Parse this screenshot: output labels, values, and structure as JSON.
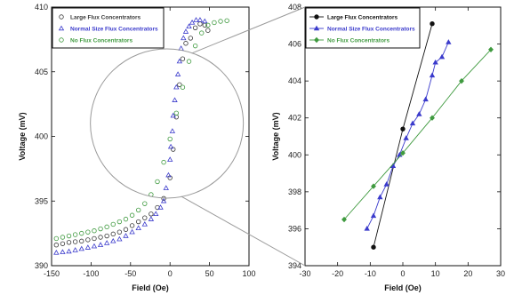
{
  "chart_data": [
    {
      "type": "scatter",
      "xlabel": "Field (Oe)",
      "ylabel": "Voltage (mV)",
      "xlim": [
        -150,
        100
      ],
      "ylim": [
        390,
        410
      ],
      "x_ticks": [
        "-150",
        "-100",
        "-50",
        "0",
        "50",
        "100"
      ],
      "y_ticks": [
        "390",
        "395",
        "400",
        "405",
        "410"
      ],
      "legend_position": "top-left",
      "series": [
        {
          "name": "Large Flux Concentrators",
          "marker": "circle",
          "color": "#3a3a3a",
          "points": [
            [
              -144,
              391.6
            ],
            [
              -136,
              391.7
            ],
            [
              -128,
              391.8
            ],
            [
              -120,
              391.85
            ],
            [
              -112,
              391.9
            ],
            [
              -104,
              392.0
            ],
            [
              -96,
              392.1
            ],
            [
              -88,
              392.2
            ],
            [
              -80,
              392.3
            ],
            [
              -72,
              392.45
            ],
            [
              -64,
              392.6
            ],
            [
              -56,
              392.8
            ],
            [
              -48,
              393.1
            ],
            [
              -40,
              393.4
            ],
            [
              -32,
              393.7
            ],
            [
              -24,
              394.0
            ],
            [
              -16,
              394.5
            ],
            [
              -8,
              395.2
            ],
            [
              0,
              396.8
            ],
            [
              4,
              399.0
            ],
            [
              8,
              401.5
            ],
            [
              12,
              404.0
            ],
            [
              16,
              406.0
            ],
            [
              20,
              407.2
            ],
            [
              26,
              407.6
            ],
            [
              32,
              408.4
            ],
            [
              38,
              408.7
            ],
            [
              44,
              408.6
            ],
            [
              48,
              408.2
            ]
          ]
        },
        {
          "name": "Normal Size Flux Concentrators",
          "marker": "triangle",
          "color": "#3b3bcc",
          "points": [
            [
              -144,
              391.0
            ],
            [
              -136,
              391.05
            ],
            [
              -128,
              391.1
            ],
            [
              -120,
              391.2
            ],
            [
              -112,
              391.3
            ],
            [
              -104,
              391.4
            ],
            [
              -96,
              391.5
            ],
            [
              -88,
              391.6
            ],
            [
              -80,
              391.75
            ],
            [
              -72,
              391.9
            ],
            [
              -64,
              392.05
            ],
            [
              -56,
              392.3
            ],
            [
              -48,
              392.6
            ],
            [
              -40,
              392.9
            ],
            [
              -32,
              393.2
            ],
            [
              -24,
              393.6
            ],
            [
              -18,
              394.0
            ],
            [
              -12,
              394.5
            ],
            [
              -8,
              395.0
            ],
            [
              -5,
              396.0
            ],
            [
              -2,
              397.0
            ],
            [
              0,
              398.2
            ],
            [
              1,
              399.2
            ],
            [
              3,
              400.4
            ],
            [
              4,
              401.6
            ],
            [
              6,
              402.8
            ],
            [
              8,
              403.8
            ],
            [
              10,
              404.8
            ],
            [
              12,
              405.8
            ],
            [
              14,
              406.8
            ],
            [
              17,
              407.6
            ],
            [
              20,
              408.1
            ],
            [
              24,
              408.5
            ],
            [
              28,
              408.8
            ],
            [
              33,
              409.0
            ],
            [
              38,
              409.0
            ],
            [
              44,
              408.9
            ]
          ]
        },
        {
          "name": "No Flux Concentrators",
          "marker": "circle",
          "color": "#3f9a3f",
          "points": [
            [
              -144,
              392.1
            ],
            [
              -136,
              392.2
            ],
            [
              -128,
              392.3
            ],
            [
              -120,
              392.4
            ],
            [
              -112,
              392.5
            ],
            [
              -104,
              392.6
            ],
            [
              -96,
              392.7
            ],
            [
              -88,
              392.85
            ],
            [
              -80,
              393.0
            ],
            [
              -72,
              393.2
            ],
            [
              -64,
              393.4
            ],
            [
              -56,
              393.6
            ],
            [
              -48,
              393.9
            ],
            [
              -40,
              394.3
            ],
            [
              -32,
              394.8
            ],
            [
              -24,
              395.5
            ],
            [
              -16,
              396.5
            ],
            [
              -8,
              398.0
            ],
            [
              0,
              399.8
            ],
            [
              8,
              401.8
            ],
            [
              16,
              403.8
            ],
            [
              24,
              405.8
            ],
            [
              32,
              407.0
            ],
            [
              40,
              408.0
            ],
            [
              48,
              408.6
            ],
            [
              56,
              408.8
            ],
            [
              64,
              408.9
            ],
            [
              72,
              408.95
            ]
          ]
        }
      ]
    },
    {
      "type": "line",
      "xlabel": "Field (Oe)",
      "ylabel": "Voltage (mV)",
      "xlim": [
        -30,
        30
      ],
      "ylim": [
        394,
        408
      ],
      "x_ticks": [
        "-30",
        "-20",
        "-10",
        "0",
        "10",
        "20",
        "30"
      ],
      "y_ticks": [
        "394",
        "396",
        "398",
        "400",
        "402",
        "404",
        "406",
        "408"
      ],
      "legend_position": "top-left",
      "series": [
        {
          "name": "Large Flux Concentrators",
          "marker": "circle",
          "color": "#111111",
          "points": [
            [
              -9,
              395.0
            ],
            [
              0,
              401.4
            ],
            [
              9,
              407.1
            ]
          ]
        },
        {
          "name": "Normal Size Flux Concentrators",
          "marker": "triangle",
          "color": "#3b3bcc",
          "points": [
            [
              -11,
              396.0
            ],
            [
              -9,
              396.7
            ],
            [
              -7,
              397.7
            ],
            [
              -5,
              398.4
            ],
            [
              -3,
              399.4
            ],
            [
              -1,
              400.0
            ],
            [
              1,
              400.9
            ],
            [
              3,
              401.7
            ],
            [
              5,
              402.2
            ],
            [
              7,
              403.0
            ],
            [
              9,
              404.3
            ],
            [
              10,
              405.0
            ],
            [
              12,
              405.3
            ],
            [
              14,
              406.1
            ]
          ]
        },
        {
          "name": "No Flux Concentrators",
          "marker": "diamond",
          "color": "#3f9a3f",
          "points": [
            [
              -18,
              396.5
            ],
            [
              -9,
              398.3
            ],
            [
              0,
              400.1
            ],
            [
              9,
              402.0
            ],
            [
              18,
              404.0
            ],
            [
              27,
              405.7
            ]
          ]
        }
      ]
    }
  ]
}
